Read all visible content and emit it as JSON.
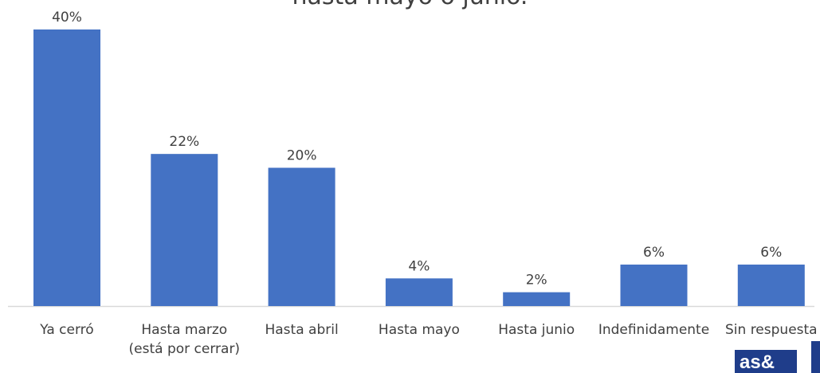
{
  "chart_data": {
    "type": "bar",
    "title": "hasta mayo o junio.",
    "categories": [
      "Ya cerró",
      "Hasta marzo (está por cerrar)",
      "Hasta abril",
      "Hasta mayo",
      "Hasta junio",
      "Indefinidamente",
      "Sin respuesta"
    ],
    "category_lines": [
      [
        "Ya cerró"
      ],
      [
        "Hasta marzo",
        "(está por cerrar)"
      ],
      [
        "Hasta abril"
      ],
      [
        "Hasta mayo"
      ],
      [
        "Hasta junio"
      ],
      [
        "Indefinidamente"
      ],
      [
        "Sin respuesta"
      ]
    ],
    "values": [
      40,
      22,
      20,
      4,
      2,
      6,
      6
    ],
    "data_labels": [
      "40%",
      "22%",
      "20%",
      "4%",
      "2%",
      "6%",
      "6%"
    ],
    "ylim": [
      0,
      40
    ],
    "bar_color": "#4472c4",
    "label_color": "#404040",
    "axis_color": "#d9d9d9",
    "grid": false,
    "legend": "none"
  },
  "logo": {
    "text": "as&",
    "color": "#1f3d8a"
  }
}
